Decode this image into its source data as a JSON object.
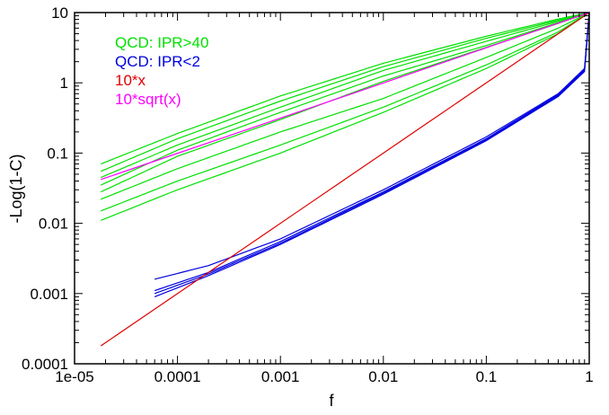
{
  "chart_data": {
    "type": "line",
    "title": "",
    "xlabel": "f",
    "ylabel": "-Log(1-C)",
    "xscale": "log",
    "yscale": "log",
    "xlim": [
      1e-05,
      1
    ],
    "ylim": [
      0.0001,
      10
    ],
    "grid": false,
    "legend_position": "top-left",
    "x_ticks": [
      {
        "value": 1e-05,
        "label": "1e-05"
      },
      {
        "value": 0.0001,
        "label": "0.0001"
      },
      {
        "value": 0.001,
        "label": "0.001"
      },
      {
        "value": 0.01,
        "label": "0.01"
      },
      {
        "value": 0.1,
        "label": "0.1"
      },
      {
        "value": 1,
        "label": "1"
      }
    ],
    "y_ticks": [
      {
        "value": 0.0001,
        "label": "0.0001"
      },
      {
        "value": 0.001,
        "label": "0.001"
      },
      {
        "value": 0.01,
        "label": "0.01"
      },
      {
        "value": 0.1,
        "label": "0.1"
      },
      {
        "value": 1,
        "label": "1"
      },
      {
        "value": 10,
        "label": "10"
      }
    ],
    "legend": [
      {
        "label": "QCD: IPR>40",
        "color": "#00e000"
      },
      {
        "label": "QCD: IPR<2",
        "color": "#0000e0"
      },
      {
        "label": "10*x",
        "color": "#e00000"
      },
      {
        "label": "10*sqrt(x)",
        "color": "#ff00ff"
      }
    ],
    "series": [
      {
        "group": "QCD: IPR>40",
        "color": "#00e000",
        "x": [
          1.8e-05,
          0.0001,
          0.001,
          0.01,
          0.1,
          0.5,
          1
        ],
        "y": [
          0.07,
          0.19,
          0.65,
          1.9,
          4.6,
          8.1,
          10
        ]
      },
      {
        "group": "QCD: IPR>40",
        "color": "#00e000",
        "x": [
          1.8e-05,
          0.0001,
          0.001,
          0.01,
          0.1,
          0.5,
          1
        ],
        "y": [
          0.055,
          0.16,
          0.55,
          1.7,
          4.3,
          7.8,
          10
        ]
      },
      {
        "group": "QCD: IPR>40",
        "color": "#00e000",
        "x": [
          1.8e-05,
          0.0001,
          0.001,
          0.01,
          0.1,
          0.5,
          1
        ],
        "y": [
          0.045,
          0.13,
          0.45,
          1.5,
          3.9,
          7.5,
          10
        ]
      },
      {
        "group": "QCD: IPR>40",
        "color": "#00e000",
        "x": [
          1.8e-05,
          0.0001,
          0.001,
          0.01,
          0.1,
          0.5,
          1
        ],
        "y": [
          0.035,
          0.11,
          0.38,
          1.25,
          3.4,
          7.2,
          10
        ]
      },
      {
        "group": "QCD: IPR>40",
        "color": "#00e000",
        "x": [
          1.8e-05,
          0.0001,
          0.001,
          0.01,
          0.1,
          0.5,
          1
        ],
        "y": [
          0.028,
          0.09,
          0.3,
          1.05,
          3.2,
          7.0,
          10
        ]
      },
      {
        "group": "QCD: IPR>40",
        "color": "#00e000",
        "x": [
          1.8e-05,
          0.0001,
          0.001,
          0.01,
          0.1,
          0.5,
          1
        ],
        "y": [
          0.022,
          0.06,
          0.2,
          0.6,
          2.3,
          6.0,
          10
        ]
      },
      {
        "group": "QCD: IPR>40",
        "color": "#00e000",
        "x": [
          1.8e-05,
          0.0001,
          0.001,
          0.01,
          0.1,
          0.5,
          1
        ],
        "y": [
          0.015,
          0.04,
          0.13,
          0.45,
          1.8,
          5.3,
          10
        ]
      },
      {
        "group": "QCD: IPR>40",
        "color": "#00e000",
        "x": [
          1.8e-05,
          0.0001,
          0.001,
          0.01,
          0.1,
          0.5,
          1
        ],
        "y": [
          0.011,
          0.03,
          0.1,
          0.38,
          1.6,
          5.0,
          10
        ]
      },
      {
        "group": "QCD: IPR<2",
        "color": "#0000e0",
        "x": [
          6e-05,
          0.0002,
          0.001,
          0.01,
          0.1,
          0.5,
          0.9,
          1
        ],
        "y": [
          0.0016,
          0.0025,
          0.006,
          0.03,
          0.17,
          0.7,
          1.6,
          10
        ]
      },
      {
        "group": "QCD: IPR<2",
        "color": "#0000e0",
        "x": [
          6e-05,
          0.0002,
          0.001,
          0.01,
          0.1,
          0.5,
          0.9,
          1
        ],
        "y": [
          0.0011,
          0.002,
          0.0055,
          0.028,
          0.16,
          0.68,
          1.55,
          10
        ]
      },
      {
        "group": "QCD: IPR<2",
        "color": "#0000e0",
        "x": [
          6e-05,
          0.0002,
          0.001,
          0.01,
          0.1,
          0.5,
          0.9,
          1
        ],
        "y": [
          0.001,
          0.0019,
          0.0052,
          0.027,
          0.155,
          0.66,
          1.5,
          10
        ]
      },
      {
        "group": "QCD: IPR<2",
        "color": "#0000e0",
        "x": [
          6e-05,
          0.0002,
          0.001,
          0.01,
          0.1,
          0.5,
          0.9,
          1
        ],
        "y": [
          0.0009,
          0.0018,
          0.005,
          0.026,
          0.15,
          0.64,
          1.45,
          10
        ]
      },
      {
        "group": "10*x",
        "color": "#e00000",
        "x": [
          1.8e-05,
          1
        ],
        "y": [
          0.00018,
          10
        ]
      },
      {
        "group": "10*sqrt(x)",
        "color": "#ff00ff",
        "x": [
          1.8e-05,
          1
        ],
        "y": [
          0.042,
          10
        ]
      }
    ]
  }
}
